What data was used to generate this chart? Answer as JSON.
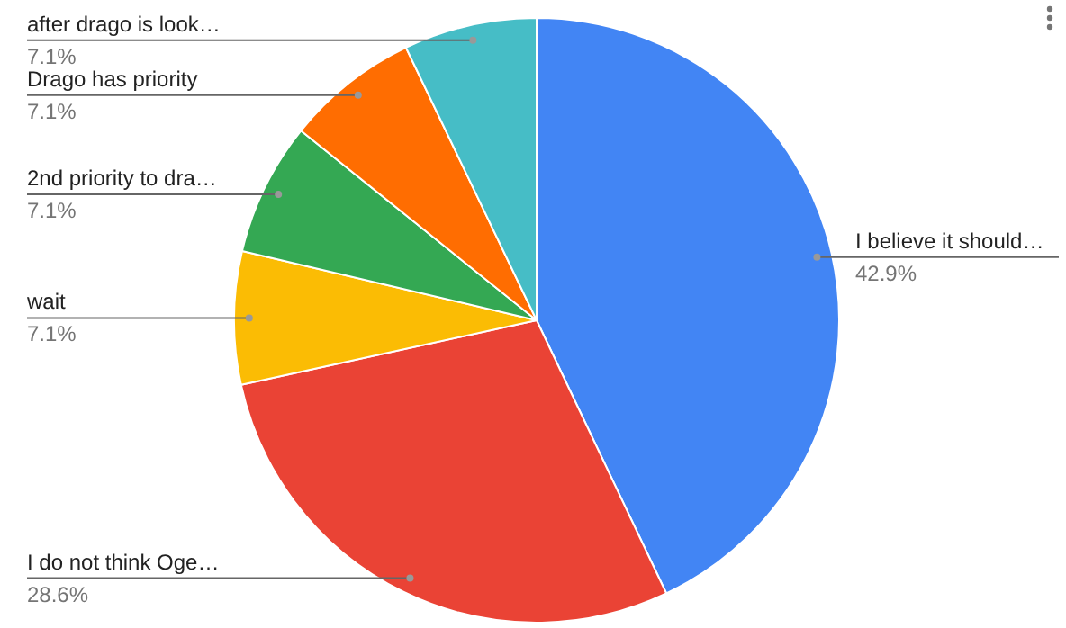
{
  "chart_data": {
    "type": "pie",
    "categories": [
      "I believe it should…",
      "I do not think Oge…",
      "wait",
      "2nd priority to dra…",
      "Drago has priority",
      "after drago is look…"
    ],
    "values": [
      42.9,
      28.6,
      7.1,
      7.1,
      7.1,
      7.1
    ],
    "value_labels": [
      "42.9%",
      "28.6%",
      "7.1%",
      "7.1%",
      "7.1%",
      "7.1%"
    ],
    "colors": [
      "#4285f4",
      "#ea4335",
      "#fbbc04",
      "#34a853",
      "#ff6d01",
      "#46bdc6"
    ],
    "legend": false
  }
}
